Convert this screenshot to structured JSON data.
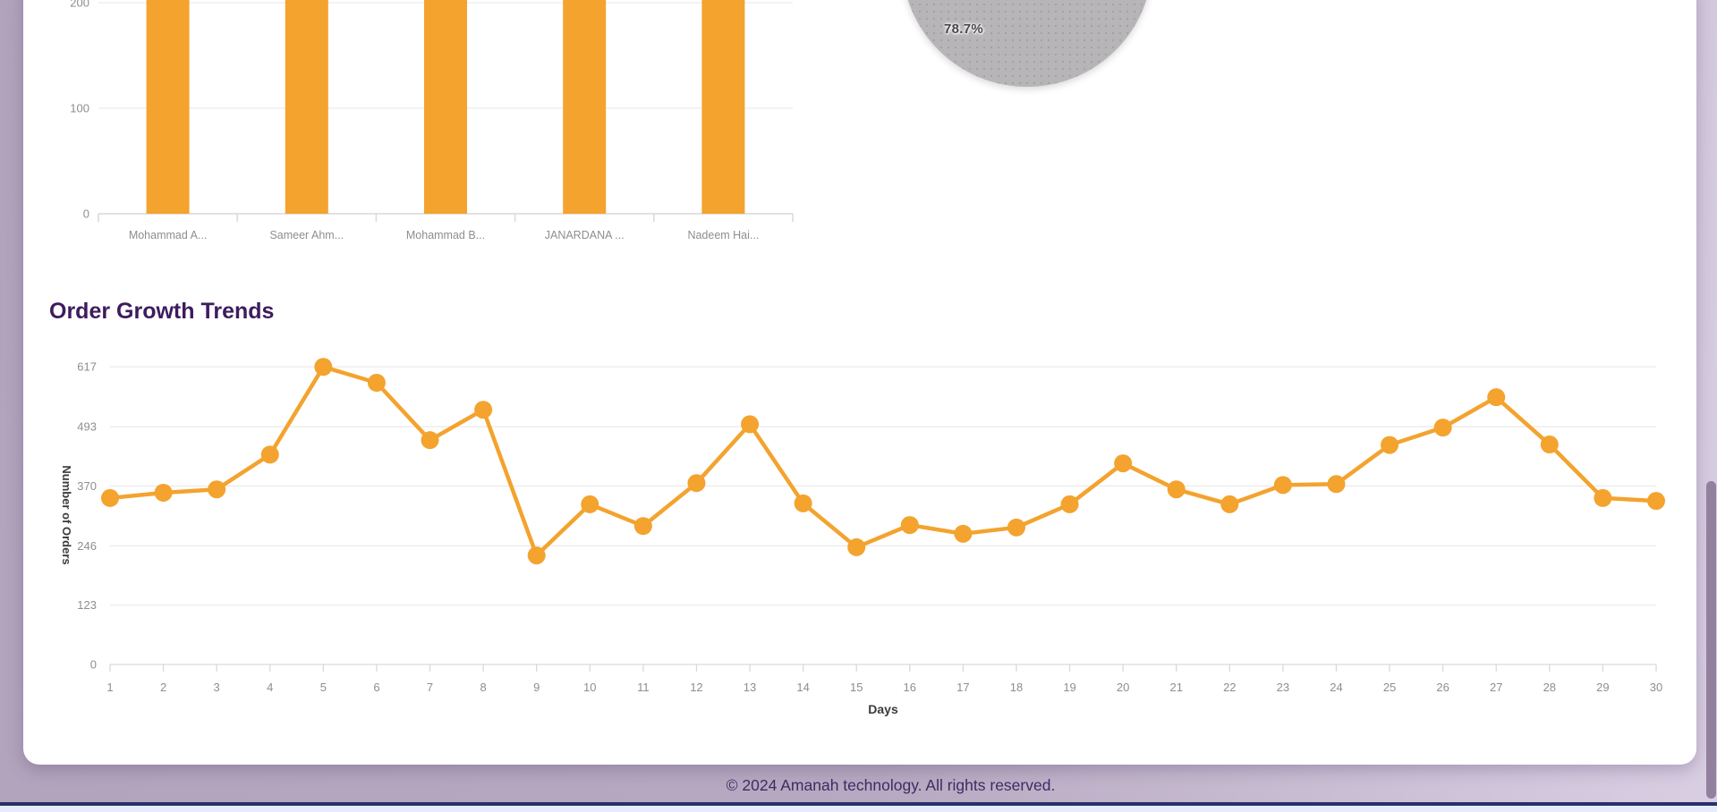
{
  "page": {
    "footer_text": "© 2024 Amanah technology. All rights reserved.",
    "colors": {
      "background_left": "#b2a3bc",
      "background_right": "#d9cfe3",
      "card": "#ffffff",
      "accent_orange": "#f3a32e",
      "title_purple": "#3d1c5e",
      "footer_text": "#3e2b63",
      "tick_label_gray": "#8e8e8e",
      "gridline_gray": "#ececec",
      "axis_gray": "#d9d9d9",
      "pie_gray": "#b8b5b8",
      "scrollbar_thumb": "#93809f"
    }
  },
  "chart_data": [
    {
      "type": "bar",
      "title": "",
      "categories": [
        "Mohammad A...",
        "Sameer Ahm...",
        "Mohammad B...",
        "JANARDANA ...",
        "Nadeem Hai..."
      ],
      "values": [
        null,
        null,
        null,
        null,
        null
      ],
      "visible_yticks": [
        0,
        100,
        200
      ],
      "bar_color": "#f3a32e",
      "note": "Top of chart is cropped by the viewport; every bar extends above the 200 gridline."
    },
    {
      "type": "pie",
      "slices": [
        {
          "label": "78.7%",
          "value": 78.7,
          "color": "#b8b5b8"
        }
      ],
      "note": "Only the bottom arc of the pie is visible; single gray dotted-pattern slice with its percentage label."
    },
    {
      "type": "line",
      "title": "Order Growth Trends",
      "xlabel": "Days",
      "ylabel": "Number of Orders",
      "x": [
        1,
        2,
        3,
        4,
        5,
        6,
        7,
        8,
        9,
        10,
        11,
        12,
        13,
        14,
        15,
        16,
        17,
        18,
        19,
        20,
        21,
        22,
        23,
        24,
        25,
        26,
        27,
        28,
        29,
        30
      ],
      "values": [
        345,
        356,
        363,
        435,
        617,
        584,
        465,
        528,
        226,
        332,
        287,
        376,
        498,
        334,
        243,
        289,
        271,
        284,
        332,
        417,
        363,
        332,
        372,
        374,
        455,
        491,
        554,
        456,
        345,
        339
      ],
      "yticks": [
        0,
        123,
        246,
        370,
        493,
        617
      ],
      "ylim": [
        0,
        617
      ],
      "grid": true,
      "legend": "none",
      "line_color": "#f3a32e",
      "point_radius": 10
    }
  ]
}
